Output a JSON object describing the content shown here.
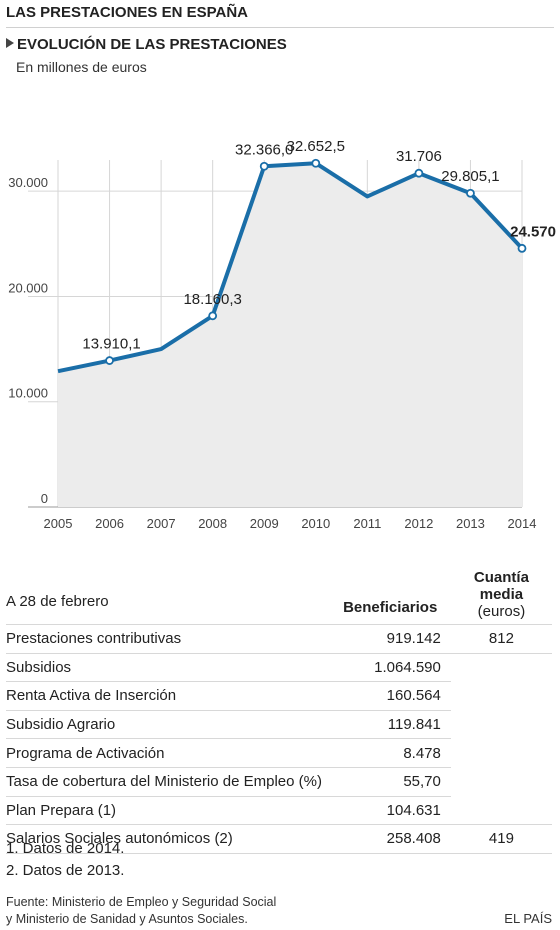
{
  "header": {
    "title": "LAS PRESTACIONES EN ESPAÑA",
    "subtitle": "EVOLUCIÓN DE LAS PRESTACIONES",
    "unit": "En millones de euros"
  },
  "chart_data": {
    "type": "area",
    "title": "EVOLUCIÓN DE LAS PRESTACIONES",
    "subtitle": "En millones de euros",
    "x": [
      2005,
      2006,
      2007,
      2008,
      2009,
      2010,
      2011,
      2012,
      2013,
      2014
    ],
    "x_tick_labels": [
      "2005",
      "2006",
      "2007",
      "2008",
      "2009",
      "2010",
      "2011",
      "2012",
      "2013",
      "2014"
    ],
    "series": [
      {
        "values": [
          12900,
          13910.1,
          15000,
          18160.3,
          32366.0,
          32652.5,
          29500,
          31706,
          29805.1,
          24570
        ],
        "data_labels": [
          "",
          "13.910,1",
          "",
          "18.160,3",
          "32.366,0",
          "32.652,5",
          "",
          "31.706",
          "29.805,1",
          "24.570"
        ],
        "marked": [
          false,
          true,
          false,
          true,
          true,
          true,
          false,
          true,
          true,
          true
        ],
        "line_color": "#1a6ea8",
        "fill_color": "#ececec"
      }
    ],
    "ylim": [
      0,
      36000
    ],
    "y_ticks": [
      0,
      10000,
      20000,
      30000
    ],
    "y_tick_labels": [
      "0",
      "10.000",
      "20.000",
      "30.000"
    ],
    "xlabel": "",
    "ylabel": "",
    "grid": true,
    "legend": "none"
  },
  "table": {
    "caption": "A 28 de febrero",
    "col_beneficiarios": "Beneficiarios",
    "col_cuantia_line1": "Cuantía",
    "col_cuantia_line2": "media",
    "col_cuantia_line3": "(euros)",
    "rows": [
      {
        "label": "Prestaciones contributivas",
        "beneficiarios": "919.142",
        "cuantia": "812"
      },
      {
        "label": "Subsidios",
        "beneficiarios": "1.064.590",
        "cuantia": ""
      },
      {
        "label": "Renta Activa de Inserción",
        "beneficiarios": "160.564",
        "cuantia": ""
      },
      {
        "label": "Subsidio Agrario",
        "beneficiarios": "119.841",
        "cuantia": ""
      },
      {
        "label": "Programa de Activación",
        "beneficiarios": "8.478",
        "cuantia": ""
      },
      {
        "label": "Tasa de cobertura del Ministerio de Empleo (%)",
        "beneficiarios": "55,70",
        "cuantia": ""
      },
      {
        "label": "Plan Prepara (1)",
        "beneficiarios": "104.631",
        "cuantia": ""
      },
      {
        "label": "Salarios Sociales autonómicos (2)",
        "beneficiarios": "258.408",
        "cuantia": "419"
      }
    ]
  },
  "notes": {
    "note1": "1. Datos de 2014.",
    "note2": "2. Datos de 2013."
  },
  "source": {
    "line1": "Fuente: Ministerio de Empleo y Seguridad Social",
    "line2": "y Ministerio de Sanidad y Asuntos Sociales."
  },
  "brand": "EL PAÍS"
}
